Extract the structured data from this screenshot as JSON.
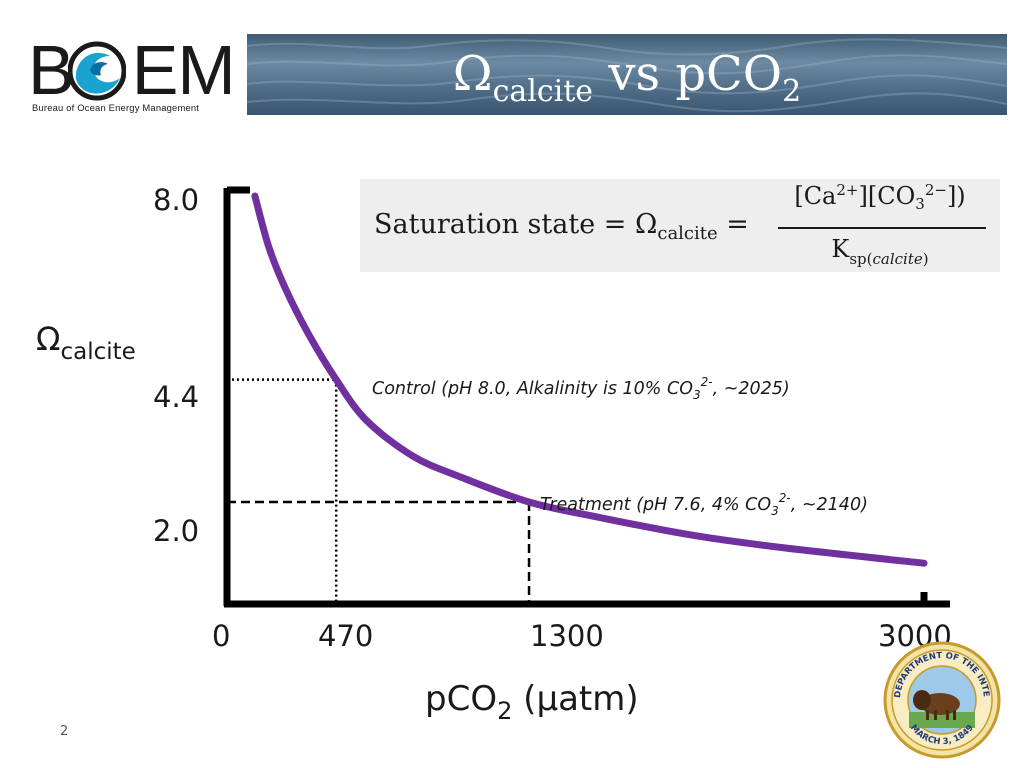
{
  "header": {
    "logo_text": "BOEM",
    "logo_subtitle": "Bureau of Ocean Energy Management",
    "title_main": "Ω",
    "title_sub": "calcite",
    "title_rest": " vs pCO",
    "title_rest_sub": "2"
  },
  "formula": {
    "lhs_text": "Saturation state = Ω",
    "lhs_sub": "calcite",
    "lhs_eq": " =",
    "num_a": "[Ca",
    "num_a_sup": "2+",
    "num_b": "][CO",
    "num_b_sub": "3",
    "num_b_sup": "2−",
    "num_c": "])",
    "den": "K",
    "den_sub": "sp(",
    "den_sub_it": "calcite",
    "den_close": ")"
  },
  "chart_data": {
    "type": "line",
    "ylabel_main": "Ω",
    "ylabel_sub": "calcite",
    "xlabel_main": "pCO",
    "xlabel_sub": "2",
    "xlabel_unit": " (µatm)",
    "xlim": [
      0,
      3000
    ],
    "ylim": [
      0,
      8.0
    ],
    "x_ticks": [
      "0",
      "470",
      "1300",
      "3000"
    ],
    "y_ticks": [
      "8.0",
      "4.4",
      "2.0"
    ],
    "series": [
      {
        "color": "#7030a0",
        "points": [
          [
            120,
            8.0
          ],
          [
            180,
            7.0
          ],
          [
            250,
            6.2
          ],
          [
            350,
            5.3
          ],
          [
            470,
            4.4
          ],
          [
            600,
            3.6
          ],
          [
            800,
            2.9
          ],
          [
            1000,
            2.5
          ],
          [
            1300,
            2.0
          ],
          [
            1600,
            1.7
          ],
          [
            2000,
            1.35
          ],
          [
            2400,
            1.1
          ],
          [
            3000,
            0.8
          ]
        ]
      }
    ],
    "reference_points": [
      {
        "x": 470,
        "y": 4.4,
        "style": "dotted"
      },
      {
        "x": 1300,
        "y": 2.0,
        "style": "dashed"
      }
    ],
    "annotations": [
      {
        "prefix": "Control (pH 8.0, Alkalinity is 10% CO",
        "sub": "3",
        "sup": "2-",
        "suffix": ", ~2025)"
      },
      {
        "prefix": "Treatment (pH 7.6, 4% CO",
        "sub": "3",
        "sup": "2-",
        "suffix": ", ~2140)"
      }
    ]
  },
  "footer": {
    "slide_number": "2",
    "seal_top": "U.S. DEPARTMENT OF THE INTERIOR",
    "seal_bottom": "MARCH 3, 1849"
  }
}
